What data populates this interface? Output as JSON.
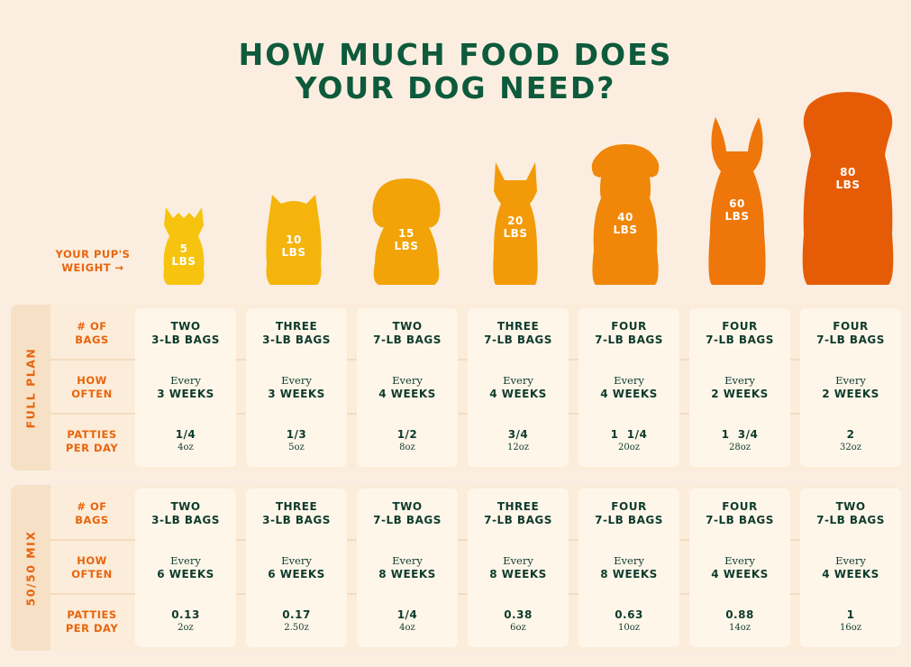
{
  "title": {
    "line1": "HOW MUCH FOOD DOES",
    "line2": "YOUR DOG NEED?"
  },
  "weight_label": {
    "line1": "YOUR PUP'S",
    "line2": "WEIGHT →"
  },
  "dogs": [
    {
      "value": "5",
      "unit": "LBS",
      "color": "#f6c40f"
    },
    {
      "value": "10",
      "unit": "LBS",
      "color": "#f4b40b"
    },
    {
      "value": "15",
      "unit": "LBS",
      "color": "#f2a307"
    },
    {
      "value": "20",
      "unit": "LBS",
      "color": "#f39a08"
    },
    {
      "value": "40",
      "unit": "LBS",
      "color": "#f08709"
    },
    {
      "value": "60",
      "unit": "LBS",
      "color": "#ee760a"
    },
    {
      "value": "80",
      "unit": "LBS",
      "color": "#e65c06"
    }
  ],
  "row_labels": {
    "bags": {
      "line1": "# OF",
      "line2": "BAGS"
    },
    "often": {
      "line1": "HOW",
      "line2": "OFTEN"
    },
    "patties": {
      "line1": "PATTIES",
      "line2": "PER DAY"
    }
  },
  "plans": [
    {
      "name": "FULL PLAN",
      "columns": [
        {
          "bags1": "TWO",
          "bags2": "3-LB BAGS",
          "often1": "Every",
          "often2": "3 WEEKS",
          "patties": "1/4",
          "oz": "4oz"
        },
        {
          "bags1": "THREE",
          "bags2": "3-LB BAGS",
          "often1": "Every",
          "often2": "3 WEEKS",
          "patties": "1/3",
          "oz": "5oz"
        },
        {
          "bags1": "TWO",
          "bags2": "7-LB BAGS",
          "often1": "Every",
          "often2": "4 WEEKS",
          "patties": "1/2",
          "oz": "8oz"
        },
        {
          "bags1": "THREE",
          "bags2": "7-LB BAGS",
          "often1": "Every",
          "often2": "4 WEEKS",
          "patties": "3/4",
          "oz": "12oz"
        },
        {
          "bags1": "FOUR",
          "bags2": "7-LB BAGS",
          "often1": "Every",
          "often2": "4 WEEKS",
          "patties": "1  1/4",
          "oz": "20oz"
        },
        {
          "bags1": "FOUR",
          "bags2": "7-LB BAGS",
          "often1": "Every",
          "often2": "2 WEEKS",
          "patties": "1  3/4",
          "oz": "28oz"
        },
        {
          "bags1": "FOUR",
          "bags2": "7-LB BAGS",
          "often1": "Every",
          "often2": "2 WEEKS",
          "patties": "2",
          "oz": "32oz"
        }
      ]
    },
    {
      "name": "50/50 MIX",
      "columns": [
        {
          "bags1": "TWO",
          "bags2": "3-LB BAGS",
          "often1": "Every",
          "often2": "6 WEEKS",
          "patties": "0.13",
          "oz": "2oz"
        },
        {
          "bags1": "THREE",
          "bags2": "3-LB BAGS",
          "often1": "Every",
          "often2": "6 WEEKS",
          "patties": "0.17",
          "oz": "2.50z"
        },
        {
          "bags1": "TWO",
          "bags2": "7-LB BAGS",
          "often1": "Every",
          "often2": "8 WEEKS",
          "patties": "1/4",
          "oz": "4oz"
        },
        {
          "bags1": "THREE",
          "bags2": "7-LB BAGS",
          "often1": "Every",
          "often2": "8 WEEKS",
          "patties": "0.38",
          "oz": "6oz"
        },
        {
          "bags1": "FOUR",
          "bags2": "7-LB BAGS",
          "often1": "Every",
          "often2": "8 WEEKS",
          "patties": "0.63",
          "oz": "10oz"
        },
        {
          "bags1": "FOUR",
          "bags2": "7-LB BAGS",
          "often1": "Every",
          "often2": "4 WEEKS",
          "patties": "0.88",
          "oz": "14oz"
        },
        {
          "bags1": "TWO",
          "bags2": "7-LB BAGS",
          "often1": "Every",
          "often2": "4 WEEKS",
          "patties": "1",
          "oz": "16oz"
        }
      ]
    }
  ],
  "colors": {
    "title": "#0d5a3c",
    "accent": "#e8640c",
    "text": "#0e3b2c",
    "background": "#fbeee0"
  }
}
